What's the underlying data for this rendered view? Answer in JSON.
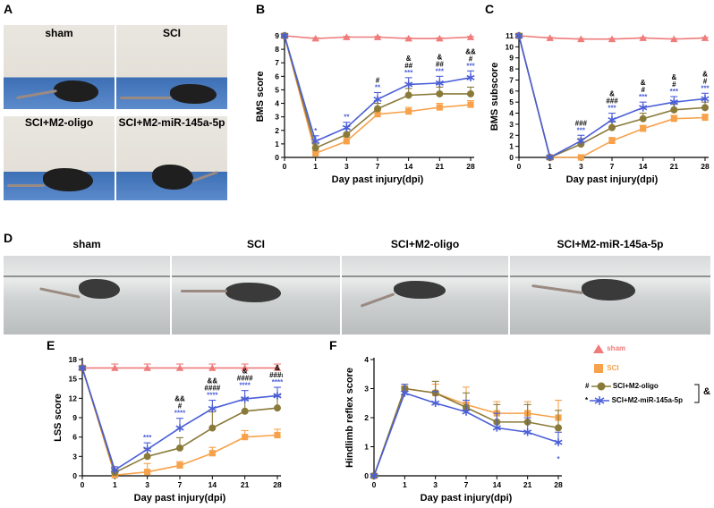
{
  "panels": {
    "a": "A",
    "b": "B",
    "c": "C",
    "d": "D",
    "e": "E",
    "f": "F"
  },
  "photos_a": [
    {
      "label": "sham"
    },
    {
      "label": "SCI"
    },
    {
      "label": "SCI+M2-oligo"
    },
    {
      "label": "SCI+M2-miR-145a-5p"
    }
  ],
  "photos_d": [
    {
      "label": "sham"
    },
    {
      "label": "SCI"
    },
    {
      "label": "SCI+M2-oligo"
    },
    {
      "label": "SCI+M2-miR-145a-5p"
    }
  ],
  "legend": {
    "items": [
      {
        "name": "sham",
        "color": "#ef7b7b",
        "marker": "triangle"
      },
      {
        "name": "SCI",
        "color": "#f7a14a",
        "marker": "square"
      },
      {
        "name": "SCI+M2-oligo",
        "color": "#8a7a3a",
        "marker": "circle",
        "prefix": "#"
      },
      {
        "name": "SCI+M2-miR-145a-5p",
        "color": "#4a5ed8",
        "marker": "star",
        "prefix": "*"
      }
    ],
    "bracket_label": "&"
  },
  "chart_data": [
    {
      "id": "B",
      "type": "line",
      "title": "",
      "xlabel": "Day past injury(dpi)",
      "ylabel": "BMS score",
      "x": [
        0,
        1,
        3,
        7,
        14,
        21,
        28
      ],
      "xticks": [
        "0",
        "1",
        "3",
        "7",
        "14",
        "21",
        "28"
      ],
      "ylim": [
        0,
        9
      ],
      "yticks": [
        0,
        1,
        2,
        3,
        4,
        5,
        6,
        7,
        8,
        9
      ],
      "series": [
        {
          "name": "sham",
          "color": "#ef7b7b",
          "marker": "triangle",
          "values": [
            9,
            8.8,
            8.9,
            8.9,
            8.8,
            8.8,
            8.9
          ],
          "err": [
            0,
            0.05,
            0.05,
            0.05,
            0.05,
            0.05,
            0.05
          ]
        },
        {
          "name": "SCI",
          "color": "#f7a14a",
          "marker": "square",
          "values": [
            9,
            0.3,
            1.2,
            3.2,
            3.4,
            3.7,
            3.9
          ],
          "err": [
            0,
            0.2,
            0.3,
            0.3,
            0.3,
            0.3,
            0.3
          ]
        },
        {
          "name": "SCI+M2-oligo",
          "color": "#8a7a3a",
          "marker": "circle",
          "values": [
            9,
            0.7,
            1.7,
            3.6,
            4.6,
            4.7,
            4.7
          ],
          "err": [
            0,
            0.3,
            0.4,
            0.4,
            0.5,
            0.5,
            0.5
          ]
        },
        {
          "name": "SCI+M2-miR-145a-5p",
          "color": "#4a5ed8",
          "marker": "star",
          "values": [
            9,
            1.2,
            2.2,
            4.3,
            5.4,
            5.5,
            5.9
          ],
          "err": [
            0,
            0.4,
            0.4,
            0.5,
            0.5,
            0.5,
            0.5
          ]
        }
      ],
      "annotations": [
        {
          "x": 1,
          "lines": [
            "*"
          ]
        },
        {
          "x": 3,
          "lines": [
            "**"
          ]
        },
        {
          "x": 7,
          "lines": [
            "#",
            "**"
          ]
        },
        {
          "x": 14,
          "lines": [
            "&",
            "##",
            "***"
          ]
        },
        {
          "x": 21,
          "lines": [
            "&",
            "##",
            "***"
          ]
        },
        {
          "x": 28,
          "lines": [
            "&&",
            "#",
            "***"
          ]
        }
      ]
    },
    {
      "id": "C",
      "type": "line",
      "title": "",
      "xlabel": "Day past injury(dpi)",
      "ylabel": "BMS subscore",
      "x": [
        0,
        1,
        3,
        7,
        14,
        21,
        28
      ],
      "xticks": [
        "0",
        "1",
        "3",
        "7",
        "14",
        "21",
        "28"
      ],
      "ylim": [
        0,
        11
      ],
      "yticks": [
        0,
        1,
        2,
        3,
        4,
        5,
        6,
        7,
        8,
        9,
        10,
        11
      ],
      "series": [
        {
          "name": "sham",
          "color": "#ef7b7b",
          "marker": "triangle",
          "values": [
            11,
            10.8,
            10.7,
            10.7,
            10.8,
            10.7,
            10.8
          ],
          "err": [
            0,
            0.05,
            0.05,
            0.05,
            0.05,
            0.05,
            0.05
          ]
        },
        {
          "name": "SCI",
          "color": "#f7a14a",
          "marker": "square",
          "values": [
            11,
            0,
            0,
            1.5,
            2.6,
            3.5,
            3.6
          ],
          "err": [
            0,
            0,
            0,
            0.3,
            0.3,
            0.3,
            0.3
          ]
        },
        {
          "name": "SCI+M2-oligo",
          "color": "#8a7a3a",
          "marker": "circle",
          "values": [
            11,
            0,
            1.2,
            2.7,
            3.5,
            4.3,
            4.5
          ],
          "err": [
            0,
            0,
            0.5,
            0.5,
            0.5,
            0.5,
            0.5
          ]
        },
        {
          "name": "SCI+M2-miR-145a-5p",
          "color": "#4a5ed8",
          "marker": "star",
          "values": [
            11,
            0,
            1.5,
            3.4,
            4.5,
            5.0,
            5.3
          ],
          "err": [
            0,
            0,
            0.5,
            0.6,
            0.5,
            0.5,
            0.5
          ]
        }
      ],
      "annotations": [
        {
          "x": 3,
          "lines": [
            "###",
            "***"
          ]
        },
        {
          "x": 7,
          "lines": [
            "&",
            "###",
            "***"
          ]
        },
        {
          "x": 14,
          "lines": [
            "&",
            "#",
            "***"
          ]
        },
        {
          "x": 21,
          "lines": [
            "&",
            "#",
            "***"
          ]
        },
        {
          "x": 28,
          "lines": [
            "&",
            "#",
            "***"
          ]
        }
      ]
    },
    {
      "id": "E",
      "type": "line",
      "title": "",
      "xlabel": "Day past injury(dpi)",
      "ylabel": "LSS score",
      "x": [
        0,
        1,
        3,
        7,
        14,
        21,
        28
      ],
      "xticks": [
        "0",
        "1",
        "3",
        "7",
        "14",
        "21",
        "28"
      ],
      "ylim": [
        0,
        18
      ],
      "yticks": [
        0,
        3,
        6,
        9,
        12,
        15,
        18
      ],
      "series": [
        {
          "name": "sham",
          "color": "#ef7b7b",
          "marker": "triangle",
          "values": [
            16.7,
            16.7,
            16.7,
            16.7,
            16.7,
            16.7,
            16.7
          ],
          "err": [
            0,
            0.6,
            0.6,
            0.6,
            0.6,
            0.6,
            0.6
          ]
        },
        {
          "name": "SCI",
          "color": "#f7a14a",
          "marker": "square",
          "values": [
            16.7,
            0.1,
            0.6,
            1.6,
            3.5,
            6.0,
            6.3
          ],
          "err": [
            0,
            0.2,
            1.3,
            0.6,
            0.9,
            1.0,
            0.9
          ]
        },
        {
          "name": "SCI+M2-oligo",
          "color": "#8a7a3a",
          "marker": "circle",
          "values": [
            16.7,
            0.5,
            3.0,
            4.3,
            7.4,
            10.0,
            10.5
          ],
          "err": [
            0,
            0.4,
            1.2,
            1.6,
            2.5,
            2.0,
            2.0
          ]
        },
        {
          "name": "SCI+M2-miR-145a-5p",
          "color": "#4a5ed8",
          "marker": "star",
          "values": [
            16.7,
            0.9,
            4.1,
            7.4,
            10.4,
            11.9,
            12.4
          ],
          "err": [
            0,
            0.5,
            1.0,
            1.5,
            1.3,
            1.3,
            1.3
          ]
        }
      ],
      "annotations": [
        {
          "x": 3,
          "lines": [
            "***"
          ]
        },
        {
          "x": 7,
          "lines": [
            "&&",
            "#",
            "****"
          ]
        },
        {
          "x": 14,
          "lines": [
            "&&",
            "####",
            "****"
          ]
        },
        {
          "x": 21,
          "lines": [
            "&",
            "####",
            "****"
          ]
        },
        {
          "x": 28,
          "lines": [
            "&",
            "####",
            "****"
          ]
        }
      ]
    },
    {
      "id": "F",
      "type": "line",
      "title": "",
      "xlabel": "Day past injury(dpi)",
      "ylabel": "Hindlimb reflex score",
      "x": [
        0,
        1,
        3,
        7,
        14,
        21,
        28
      ],
      "xticks": [
        "0",
        "1",
        "3",
        "7",
        "14",
        "21",
        "28"
      ],
      "ylim": [
        0,
        4
      ],
      "yticks": [
        0,
        1,
        2,
        3,
        4
      ],
      "series": [
        {
          "name": "SCI",
          "color": "#f7a14a",
          "marker": "square",
          "values": [
            0,
            3.0,
            2.85,
            2.45,
            2.15,
            2.15,
            2.0
          ],
          "err": [
            0,
            0.05,
            0.3,
            0.6,
            0.4,
            0.4,
            0.6
          ]
        },
        {
          "name": "SCI+M2-oligo",
          "color": "#8a7a3a",
          "marker": "circle",
          "values": [
            0,
            3.0,
            2.85,
            2.35,
            1.85,
            1.85,
            1.65
          ],
          "err": [
            0,
            0.05,
            0.4,
            0.5,
            0.6,
            0.6,
            0.6
          ]
        },
        {
          "name": "SCI+M2-miR-145a-5p",
          "color": "#4a5ed8",
          "marker": "star",
          "values": [
            0,
            2.85,
            2.5,
            2.2,
            1.65,
            1.5,
            1.15
          ],
          "err": [
            0,
            0.3,
            0.4,
            0.4,
            0.5,
            0.5,
            0.35
          ]
        }
      ],
      "annotations": [
        {
          "x": 28,
          "lines": [
            "*"
          ],
          "below": true
        }
      ]
    }
  ]
}
